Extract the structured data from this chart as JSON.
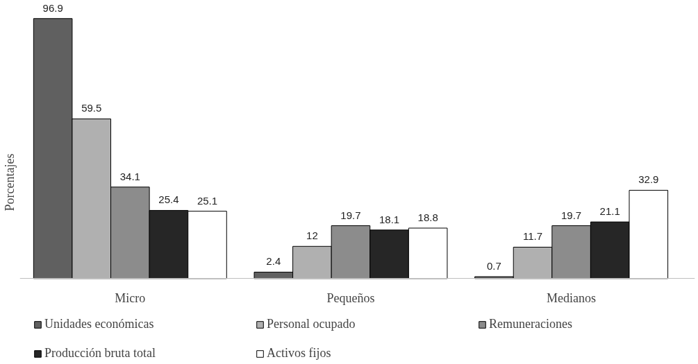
{
  "chart_data": {
    "type": "bar",
    "ylabel": "Porcentajes",
    "categories": [
      "Micro",
      "Pequeños",
      "Medianos"
    ],
    "series": [
      {
        "name": "Unidades económicas",
        "color": "#606060",
        "values": [
          96.9,
          2.4,
          0.7
        ]
      },
      {
        "name": "Personal ocupado",
        "color": "#b0b0b0",
        "values": [
          59.5,
          12,
          11.7
        ]
      },
      {
        "name": "Remuneraciones",
        "color": "#8c8c8c",
        "values": [
          34.1,
          19.7,
          19.7
        ]
      },
      {
        "name": "Producción bruta total",
        "color": "#262626",
        "values": [
          25.4,
          18.1,
          21.1
        ]
      },
      {
        "name": "Activos fijos",
        "color": "#ffffff",
        "values": [
          25.1,
          18.8,
          32.9
        ]
      }
    ],
    "data_labels": true,
    "legend": "bottom"
  }
}
